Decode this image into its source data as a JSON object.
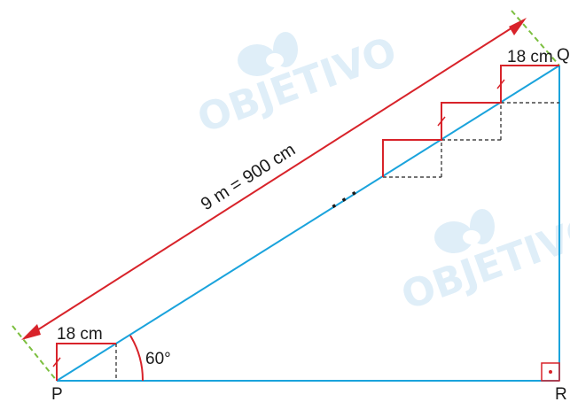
{
  "figure": {
    "hypotenuse_label": "9 m = 900 cm",
    "step_label_top": "18 cm",
    "step_label_bottom": "18 cm",
    "angle_label": "60°",
    "vertex_p": "P",
    "vertex_q": "Q",
    "vertex_r": "R",
    "ellipsis": ". . .",
    "watermark_text": "OBJETIVO"
  },
  "colors": {
    "ramp": "#1aa3dc",
    "stairs": "#d8232a",
    "guide": "#7cbf3f",
    "dashed": "#222222",
    "watermark": "#dfeef8"
  }
}
